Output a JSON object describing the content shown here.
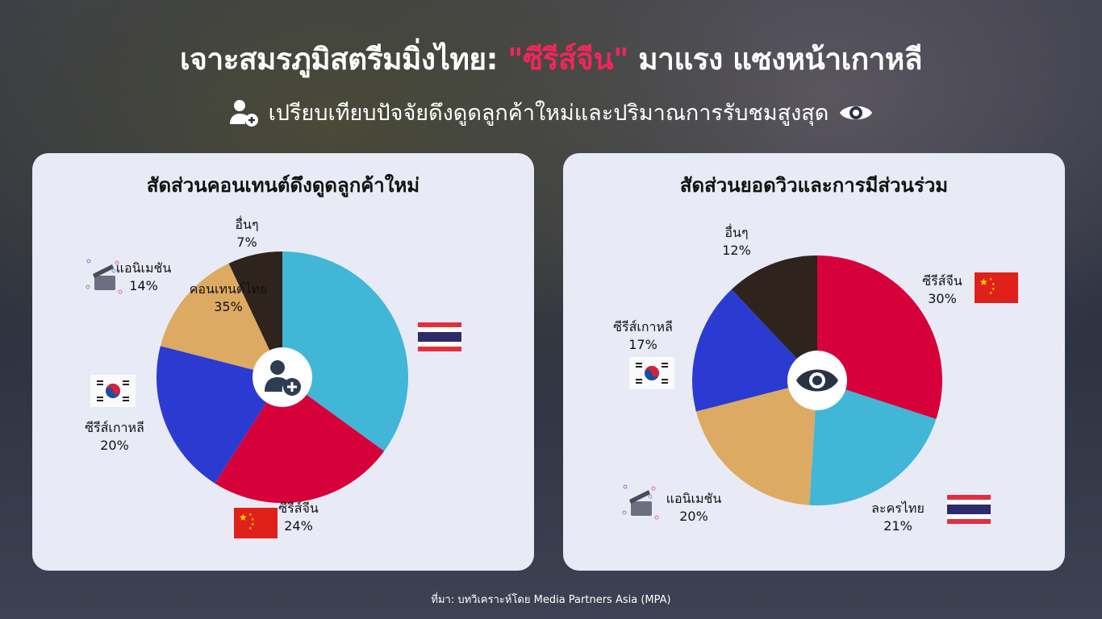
{
  "header": {
    "title_part1": "เจาะสมรภูมิสตรีมมิ่งไทย: ",
    "title_highlight": "\"ซีรีส์จีน\"",
    "title_part2": " มาแรง แซงหน้าเกาหลี",
    "subtitle": "เปรียบเทียบปัจจัยดึงดูดลูกค้าใหม่และปริมาณการรับชมสูงสุด",
    "highlight_color": "#f0265a"
  },
  "chart_data": [
    {
      "type": "pie",
      "title": "สัดส่วนคอนเทนต์ดึงดูดลูกค้าใหม่",
      "center_icon": "user-plus-icon",
      "categories": [
        "คอนเทนต์ไทย",
        "ซีรีส์จีน",
        "ซีรีส์เกาหลี",
        "แอนิเมชัน",
        "อื่นๆ"
      ],
      "values": [
        35,
        24,
        20,
        14,
        7
      ],
      "labels": [
        "35%",
        "24%",
        "20%",
        "14%",
        "7%"
      ],
      "colors": [
        "#41b6d6",
        "#d6003a",
        "#2b3bd1",
        "#dcaa62",
        "#2f231e"
      ],
      "icons": [
        "thai-flag-icon",
        "china-flag-icon",
        "korea-flag-icon",
        "clapperboard-icon",
        ""
      ]
    },
    {
      "type": "pie",
      "title": "สัดส่วนยอดวิวและการมีส่วนร่วม",
      "center_icon": "eye-icon",
      "categories": [
        "ซีรีส์จีน",
        "ละครไทย",
        "แอนิเมชัน",
        "ซีรีส์เกาหลี",
        "อื่นๆ"
      ],
      "values": [
        30,
        21,
        20,
        17,
        12
      ],
      "labels": [
        "30%",
        "21%",
        "20%",
        "17%",
        "12%"
      ],
      "colors": [
        "#d6003a",
        "#41b6d6",
        "#dcaa62",
        "#2b3bd1",
        "#2f231e"
      ],
      "icons": [
        "china-flag-icon",
        "thai-flag-icon",
        "clapperboard-icon",
        "korea-flag-icon",
        ""
      ]
    }
  ],
  "footer": {
    "source": "ที่มา: บทวิเคราะห์โดย Media Partners Asia (MPA)"
  }
}
